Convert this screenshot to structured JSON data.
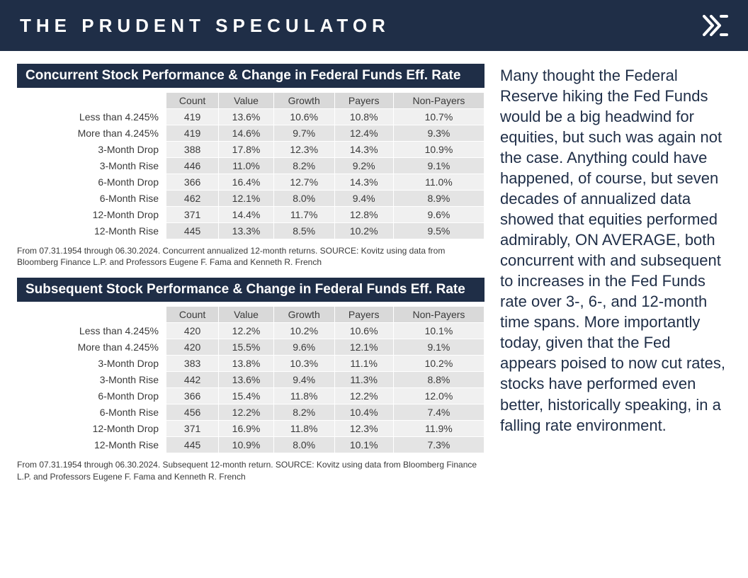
{
  "header": {
    "title": "THE PRUDENT SPECULATOR"
  },
  "colors": {
    "header_bg": "#1f2e47",
    "header_text": "#ffffff",
    "title_bar_bg": "#1f2e47",
    "title_bar_text": "#ffffff",
    "th_bg": "#d9d9d9",
    "row_odd_bg": "#f0f0f0",
    "row_even_bg": "#e4e4e4",
    "body_text": "#3a3a3a",
    "sidebar_text": "#1f2e47",
    "page_bg": "#ffffff"
  },
  "typography": {
    "header_title_fontsize": 26,
    "header_title_letterspacing": 7,
    "table_title_fontsize": 19,
    "table_cell_fontsize": 14,
    "footnote_fontsize": 12,
    "sidebar_fontsize": 22
  },
  "table1": {
    "type": "table",
    "title": "Concurrent Stock Performance & Change in Federal Funds Eff. Rate",
    "columns": [
      "Count",
      "Value",
      "Growth",
      "Payers",
      "Non-Payers"
    ],
    "rows": [
      {
        "label": "Less than 4.245%",
        "cells": [
          "419",
          "13.6%",
          "10.6%",
          "10.8%",
          "10.7%"
        ]
      },
      {
        "label": "More than 4.245%",
        "cells": [
          "419",
          "14.6%",
          "9.7%",
          "12.4%",
          "9.3%"
        ]
      },
      {
        "label": "3-Month Drop",
        "cells": [
          "388",
          "17.8%",
          "12.3%",
          "14.3%",
          "10.9%"
        ]
      },
      {
        "label": "3-Month Rise",
        "cells": [
          "446",
          "11.0%",
          "8.2%",
          "9.2%",
          "9.1%"
        ]
      },
      {
        "label": "6-Month Drop",
        "cells": [
          "366",
          "16.4%",
          "12.7%",
          "14.3%",
          "11.0%"
        ]
      },
      {
        "label": "6-Month Rise",
        "cells": [
          "462",
          "12.1%",
          "8.0%",
          "9.4%",
          "8.9%"
        ]
      },
      {
        "label": "12-Month Drop",
        "cells": [
          "371",
          "14.4%",
          "11.7%",
          "12.8%",
          "9.6%"
        ]
      },
      {
        "label": "12-Month Rise",
        "cells": [
          "445",
          "13.3%",
          "8.5%",
          "10.2%",
          "9.5%"
        ]
      }
    ],
    "footnote": "From 07.31.1954 through 06.30.2024. Concurrent annualized 12-month returns. SOURCE: Kovitz using data from Bloomberg Finance L.P. and Professors Eugene F. Fama and Kenneth R. French"
  },
  "table2": {
    "type": "table",
    "title": "Subsequent Stock Performance & Change in Federal Funds Eff. Rate",
    "columns": [
      "Count",
      "Value",
      "Growth",
      "Payers",
      "Non-Payers"
    ],
    "rows": [
      {
        "label": "Less than 4.245%",
        "cells": [
          "420",
          "12.2%",
          "10.2%",
          "10.6%",
          "10.1%"
        ]
      },
      {
        "label": "More than 4.245%",
        "cells": [
          "420",
          "15.5%",
          "9.6%",
          "12.1%",
          "9.1%"
        ]
      },
      {
        "label": "3-Month Drop",
        "cells": [
          "383",
          "13.8%",
          "10.3%",
          "11.1%",
          "10.2%"
        ]
      },
      {
        "label": "3-Month Rise",
        "cells": [
          "442",
          "13.6%",
          "9.4%",
          "11.3%",
          "8.8%"
        ]
      },
      {
        "label": "6-Month Drop",
        "cells": [
          "366",
          "15.4%",
          "11.8%",
          "12.2%",
          "12.0%"
        ]
      },
      {
        "label": "6-Month Rise",
        "cells": [
          "456",
          "12.2%",
          "8.2%",
          "10.4%",
          "7.4%"
        ]
      },
      {
        "label": "12-Month Drop",
        "cells": [
          "371",
          "16.9%",
          "11.8%",
          "12.3%",
          "11.9%"
        ]
      },
      {
        "label": "12-Month Rise",
        "cells": [
          "445",
          "10.9%",
          "8.0%",
          "10.1%",
          "7.3%"
        ]
      }
    ],
    "footnote": "From 07.31.1954 through 06.30.2024. Subsequent 12-month return. SOURCE: Kovitz using data from Bloomberg Finance L.P. and Professors Eugene F. Fama and Kenneth R. French"
  },
  "sidebar_text": "Many thought the Federal Reserve hiking the Fed Funds would be a big headwind for equities, but such was again not the case. Anything could have happened, of course, but seven decades of annualized data showed that equities performed admirably, ON AVERAGE, both concurrent with and subsequent to increases in the Fed Funds rate over 3-, 6-, and 12-month time spans. More importantly today, given that the Fed appears poised to now cut rates, stocks have performed even better, historically speaking, in a falling rate environment."
}
